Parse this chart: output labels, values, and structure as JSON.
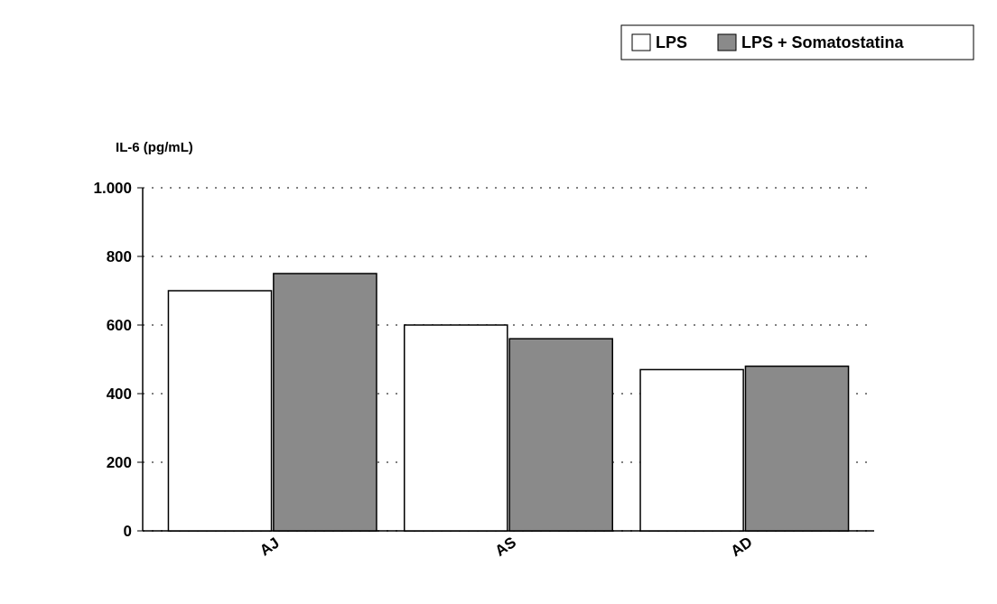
{
  "chart_data": {
    "type": "bar",
    "ylabel": "IL-6 (pg/mL)",
    "categories": [
      "AJ",
      "AS",
      "AD"
    ],
    "series": [
      {
        "name": "LPS",
        "color": "#ffffff",
        "values": [
          700,
          600,
          470
        ]
      },
      {
        "name": "LPS + Somatostatina",
        "color": "#8a8a8a",
        "values": [
          750,
          560,
          480
        ]
      }
    ],
    "ylim": [
      0,
      1000
    ],
    "yticks": [
      0,
      200,
      400,
      600,
      800,
      {
        "value": 1000,
        "label": "1.000"
      }
    ],
    "grid": "y",
    "legend": "top right"
  }
}
